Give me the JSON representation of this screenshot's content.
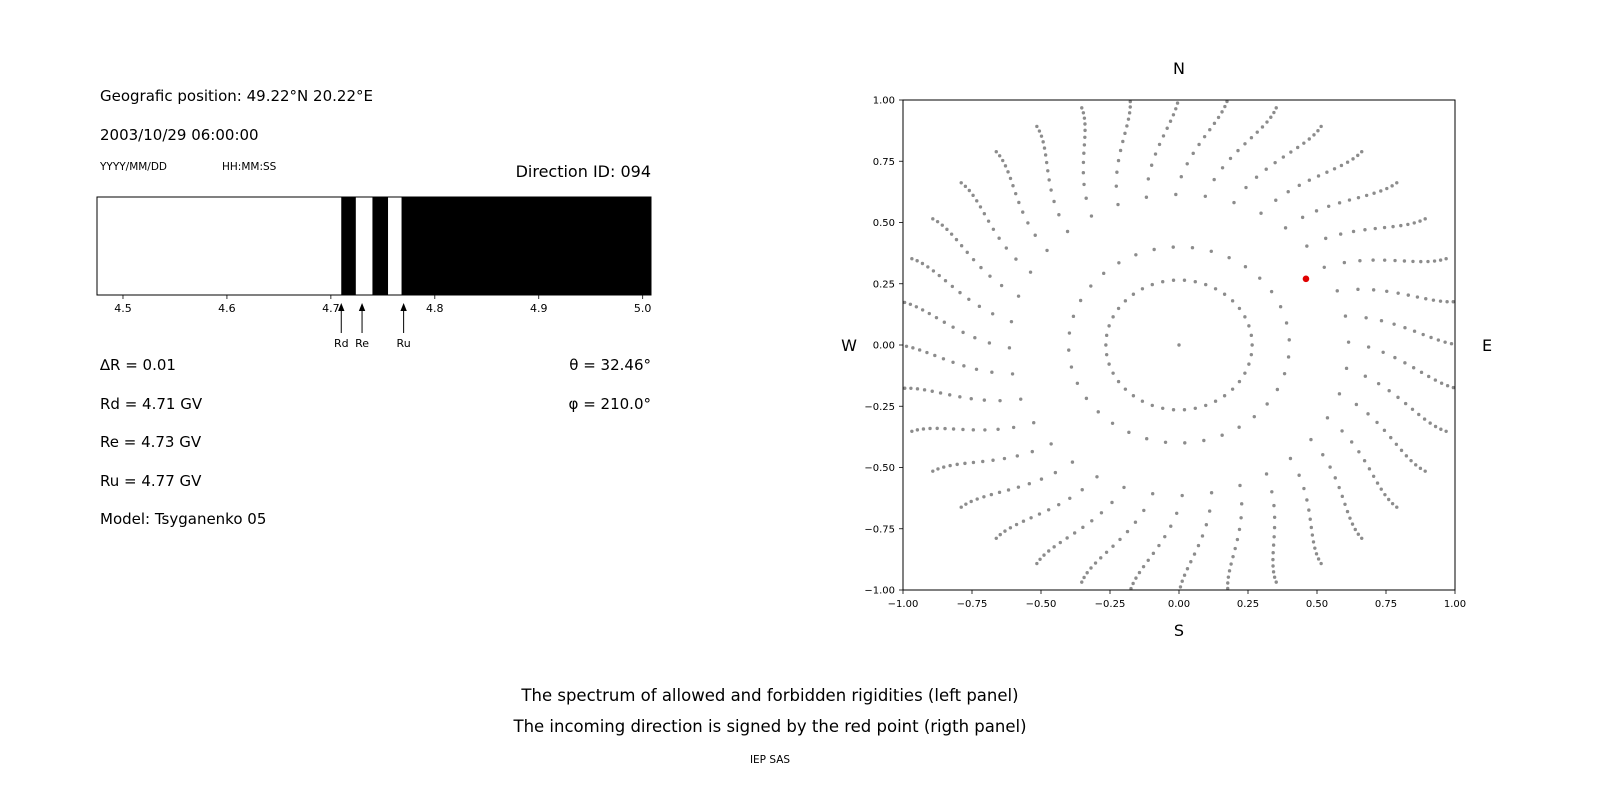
{
  "header": {
    "position": "Geografic position: 49.22°N 20.22°E",
    "datetime": "2003/10/29 06:00:00",
    "date_format_hint": "YYYY/MM/DD",
    "time_format_hint": "HH:MM:SS",
    "direction_id": "Direction ID: 094"
  },
  "parameters": {
    "delta_r": "∆R = 0.01",
    "theta": "θ = 32.46°",
    "phi": "φ = 210.0°",
    "rd": "Rd = 4.71 GV",
    "re": "Re = 4.73 GV",
    "ru": "Ru = 4.77 GV",
    "model": "Model: Tsyganenko 05"
  },
  "captions": {
    "line1": "The spectrum of allowed and forbidden rigidities (left panel)",
    "line2": "The incoming direction is signed by the red point (rigth panel)",
    "credit": "IEP SAS"
  },
  "chart_data": [
    {
      "type": "area",
      "description": "Rigidity spectrum: white = allowed, black = forbidden",
      "x_range": [
        4.475,
        5.008
      ],
      "x_ticks": [
        {
          "value": 4.5,
          "label": "4.5"
        },
        {
          "value": 4.6,
          "label": "4.6"
        },
        {
          "value": 4.7,
          "label": "4.7"
        },
        {
          "value": 4.8,
          "label": "4.8"
        },
        {
          "value": 4.9,
          "label": "4.9"
        },
        {
          "value": 5.0,
          "label": "5.0"
        }
      ],
      "forbidden_segments": [
        [
          4.71,
          4.724
        ],
        [
          4.74,
          4.755
        ],
        [
          4.768,
          5.008
        ]
      ],
      "markers": [
        {
          "label": "Rd",
          "value": 4.71
        },
        {
          "label": "Re",
          "value": 4.73
        },
        {
          "label": "Ru",
          "value": 4.77
        }
      ],
      "colors": {
        "forbidden": "#000000",
        "allowed": "#ffffff"
      }
    },
    {
      "type": "scatter",
      "description": "Incoming direction map with asymptotic direction dots",
      "compass": {
        "top": "N",
        "bottom": "S",
        "left": "W",
        "right": "E"
      },
      "xlim": [
        -1,
        1
      ],
      "ylim": [
        -1,
        1
      ],
      "x_ticks": [
        {
          "value": -1.0,
          "label": "−1.00"
        },
        {
          "value": -0.75,
          "label": "−0.75"
        },
        {
          "value": -0.5,
          "label": "−0.50"
        },
        {
          "value": -0.25,
          "label": "−0.25"
        },
        {
          "value": 0.0,
          "label": "0.00"
        },
        {
          "value": 0.25,
          "label": "0.25"
        },
        {
          "value": 0.5,
          "label": "0.50"
        },
        {
          "value": 0.75,
          "label": "0.75"
        },
        {
          "value": 1.0,
          "label": "1.00"
        }
      ],
      "y_ticks": [
        {
          "value": 1.0,
          "label": "1.00"
        },
        {
          "value": 0.75,
          "label": "0.75"
        },
        {
          "value": 0.5,
          "label": "0.50"
        },
        {
          "value": 0.25,
          "label": "0.25"
        },
        {
          "value": 0.0,
          "label": "0.00"
        },
        {
          "value": -0.25,
          "label": "−0.25"
        },
        {
          "value": -0.5,
          "label": "−0.50"
        },
        {
          "value": -0.75,
          "label": "−0.75"
        },
        {
          "value": -1.0,
          "label": "−1.00"
        }
      ],
      "dot_color": "#8c8c8c",
      "center_dot": true,
      "rings": [
        {
          "radius": 0.265,
          "count": 42
        }
      ],
      "spokes": {
        "count": 36,
        "start_angle_deg": 0,
        "inner_radius": 0.4,
        "outer_radius": 1.03,
        "points_per_spoke": 14,
        "radial_exponent": 0.42,
        "curl_deg": 13
      },
      "red_point": {
        "x": 0.46,
        "y": 0.27,
        "color": "#e00000"
      }
    }
  ]
}
